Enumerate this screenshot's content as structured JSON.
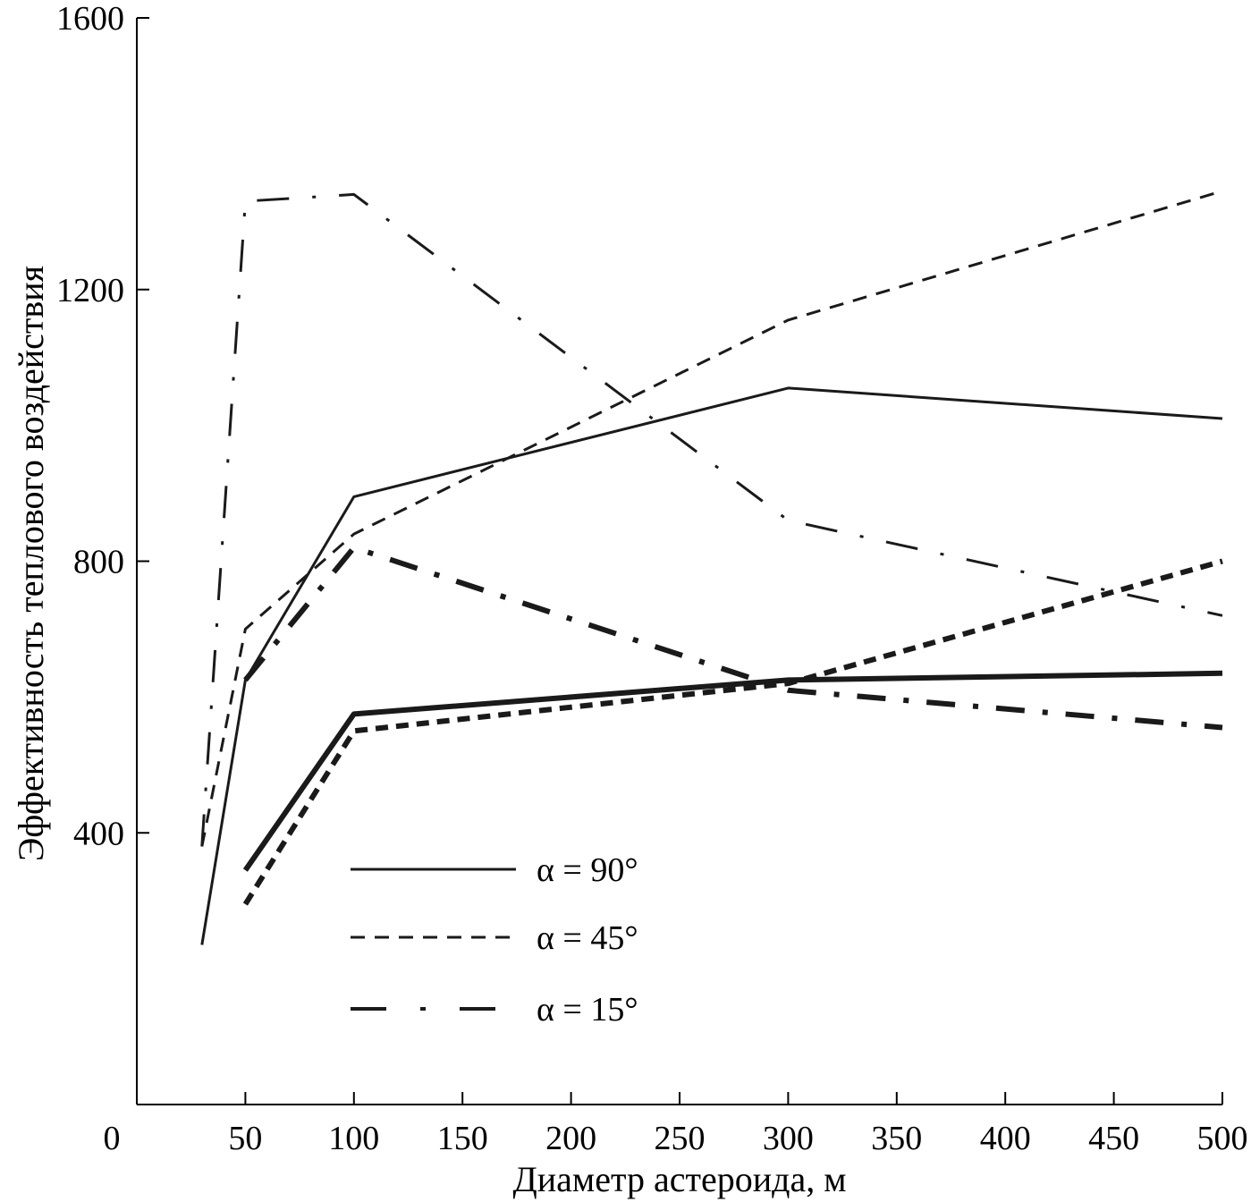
{
  "chart_data": {
    "type": "line",
    "title": "",
    "xlabel": "Диаметр астероида, м",
    "ylabel": "Эффективность теплового воздействия",
    "xlim": [
      0,
      500
    ],
    "ylim": [
      0,
      1600
    ],
    "x_ticks": [
      0,
      50,
      100,
      150,
      200,
      250,
      300,
      350,
      400,
      450,
      500
    ],
    "y_ticks": [
      400,
      800,
      1200,
      1600
    ],
    "grid": false,
    "legend_position": "bottom-center",
    "legend": [
      {
        "label": "α = 90°",
        "style": "solid"
      },
      {
        "label": "α = 45°",
        "style": "dashed"
      },
      {
        "label": "α = 15°",
        "style": "dash-dot"
      }
    ],
    "series": [
      {
        "name": "α = 90° (thin)",
        "style": "solid",
        "weight": "thin",
        "x": [
          30,
          50,
          100,
          300,
          500
        ],
        "y": [
          235,
          625,
          895,
          1055,
          1010
        ]
      },
      {
        "name": "α = 45° (thin)",
        "style": "dashed",
        "weight": "thin",
        "x": [
          30,
          50,
          100,
          300,
          500
        ],
        "y": [
          380,
          700,
          840,
          1155,
          1345
        ]
      },
      {
        "name": "α = 15° (thin)",
        "style": "dash-dot",
        "weight": "thin",
        "x": [
          30,
          50,
          100,
          300,
          500
        ],
        "y": [
          380,
          1330,
          1340,
          860,
          720
        ]
      },
      {
        "name": "α = 90° (thick)",
        "style": "solid",
        "weight": "thick",
        "x": [
          50,
          100,
          300,
          500
        ],
        "y": [
          345,
          575,
          625,
          635
        ]
      },
      {
        "name": "α = 45° (thick)",
        "style": "dashed",
        "weight": "thick",
        "x": [
          50,
          100,
          300,
          500
        ],
        "y": [
          295,
          550,
          620,
          800
        ]
      },
      {
        "name": "α = 15° (thick)",
        "style": "dash-dot",
        "weight": "thick",
        "x": [
          50,
          100,
          300,
          500
        ],
        "y": [
          625,
          820,
          610,
          555
        ]
      }
    ]
  }
}
